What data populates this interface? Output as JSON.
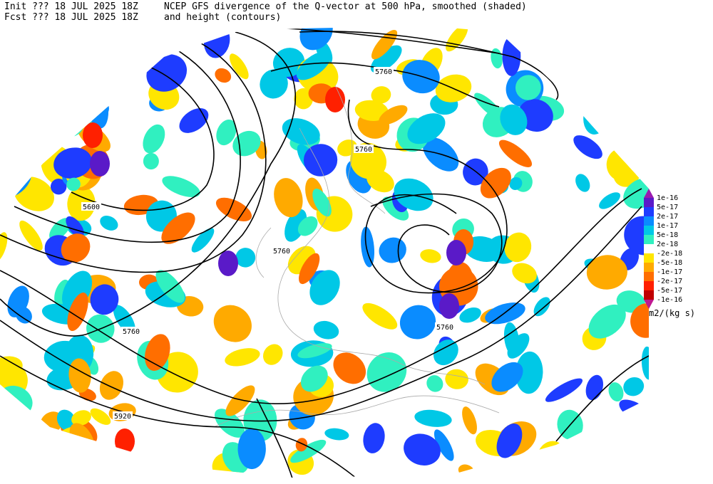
{
  "header": {
    "init": "Init  ??? 18 JUL 2025 18Z",
    "fcst": "Fcst ??? 18 JUL 2025 18Z",
    "title_line1": "NCEP GFS divergence of the Q-vector at 500 hPa, smoothed (shaded)",
    "title_line2": "and height (contours)"
  },
  "contour_labels": [
    "5760",
    "5760",
    "5600",
    "5760",
    "5760",
    "5760",
    "5920"
  ],
  "colorbar": {
    "units": "m2/(kg s)",
    "labels": [
      "1e-16",
      "5e-17",
      "2e-17",
      "1e-17",
      "5e-18",
      "2e-18",
      "-2e-18",
      "-5e-18",
      "-1e-17",
      "-2e-17",
      "-5e-17",
      "-1e-16"
    ],
    "colors": [
      "#9a1ab0",
      "#5a1ac8",
      "#1e3cff",
      "#0a8cff",
      "#00c8e6",
      "#30f0c0",
      "#ffffff",
      "#ffe600",
      "#ffaa00",
      "#ff6e00",
      "#ff2000",
      "#c00000",
      "#c01890"
    ]
  }
}
